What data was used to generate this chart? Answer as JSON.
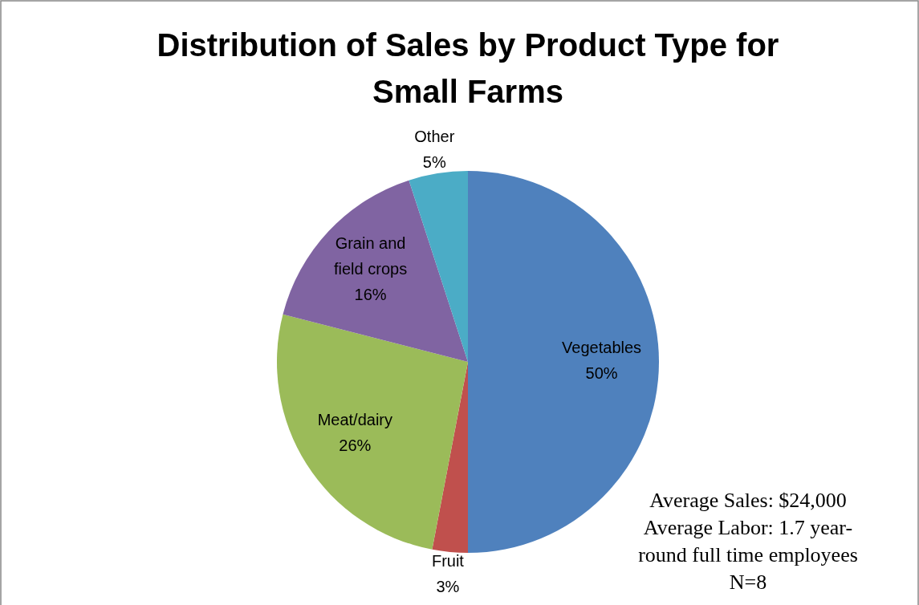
{
  "chart_data": {
    "type": "pie",
    "title": "Distribution of Sales by Product Type for Small Farms",
    "categories": [
      "Vegetables",
      "Fruit",
      "Meat/dairy",
      "Grain and field crops",
      "Other"
    ],
    "values": [
      50,
      3,
      26,
      16,
      5
    ],
    "colors": [
      "#4f81bd",
      "#c0504d",
      "#9bbb59",
      "#8064a2",
      "#4bacc6"
    ],
    "value_labels": [
      "50%",
      "3%",
      "26%",
      "16%",
      "5%"
    ],
    "annotations": [
      "Average Sales: $24,000",
      "Average Labor: 1.7 year-round full time employees",
      "N=8"
    ]
  }
}
